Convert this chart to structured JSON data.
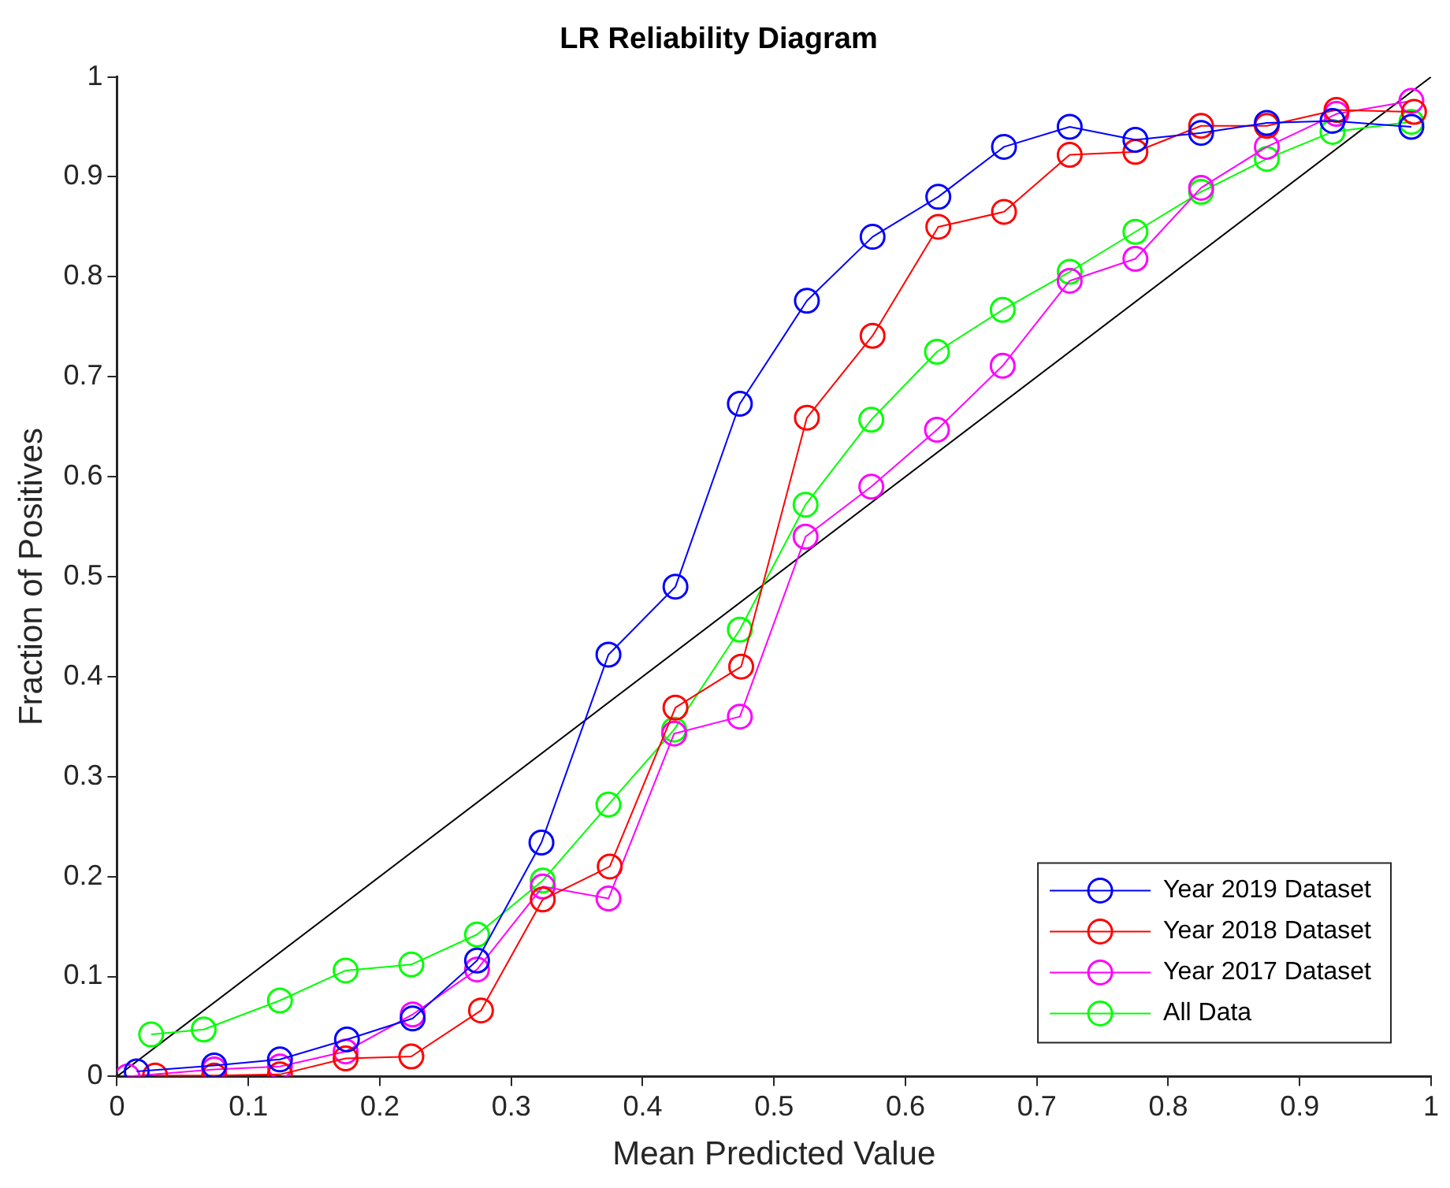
{
  "chart_data": {
    "type": "line",
    "title": "LR Reliability Diagram",
    "xlabel": "Mean Predicted Value",
    "ylabel": "Fraction of Positives",
    "xlim": [
      0,
      1
    ],
    "ylim": [
      0,
      1
    ],
    "xticks": [
      0,
      0.1,
      0.2,
      0.3,
      0.4,
      0.5,
      0.6,
      0.7,
      0.8,
      0.9,
      1
    ],
    "yticks": [
      0,
      0.1,
      0.2,
      0.3,
      0.4,
      0.5,
      0.6,
      0.7,
      0.8,
      0.9,
      1
    ],
    "grid": false,
    "legend": "bottom right",
    "marker": "circle",
    "line_style": "solid",
    "series": [
      {
        "name": "Year 2019 Dataset",
        "color": "#0000ff",
        "x": [
          0.015,
          0.074,
          0.124,
          0.175,
          0.225,
          0.274,
          0.323,
          0.374,
          0.425,
          0.474,
          0.525,
          0.575,
          0.625,
          0.675,
          0.725,
          0.775,
          0.825,
          0.875,
          0.925,
          0.985
        ],
        "values": [
          0.005,
          0.011,
          0.017,
          0.037,
          0.058,
          0.116,
          0.234,
          0.422,
          0.49,
          0.673,
          0.776,
          0.84,
          0.88,
          0.93,
          0.95,
          0.937,
          0.944,
          0.954,
          0.956,
          0.95
        ]
      },
      {
        "name": "Year 2018 Dataset",
        "color": "#ff0000",
        "x": [
          0.029,
          0.074,
          0.124,
          0.174,
          0.224,
          0.277,
          0.324,
          0.375,
          0.425,
          0.475,
          0.525,
          0.575,
          0.625,
          0.675,
          0.725,
          0.775,
          0.825,
          0.875,
          0.928,
          0.987
        ],
        "values": [
          0.001,
          0.001,
          0.002,
          0.018,
          0.02,
          0.066,
          0.177,
          0.21,
          0.369,
          0.41,
          0.659,
          0.741,
          0.85,
          0.865,
          0.922,
          0.925,
          0.951,
          0.951,
          0.967,
          0.965
        ]
      },
      {
        "name": "Year 2017 Dataset",
        "color": "#ff00ff",
        "x": [
          0.008,
          0.074,
          0.124,
          0.174,
          0.225,
          0.274,
          0.324,
          0.374,
          0.424,
          0.474,
          0.524,
          0.574,
          0.624,
          0.674,
          0.725,
          0.775,
          0.825,
          0.875,
          0.928,
          0.985
        ],
        "values": [
          0.0,
          0.007,
          0.01,
          0.025,
          0.062,
          0.107,
          0.19,
          0.178,
          0.343,
          0.36,
          0.54,
          0.59,
          0.647,
          0.711,
          0.796,
          0.818,
          0.889,
          0.93,
          0.963,
          0.976
        ]
      },
      {
        "name": "All Data",
        "color": "#00ff00",
        "x": [
          0.026,
          0.066,
          0.124,
          0.174,
          0.224,
          0.274,
          0.324,
          0.374,
          0.424,
          0.474,
          0.524,
          0.574,
          0.624,
          0.674,
          0.725,
          0.775,
          0.825,
          0.875,
          0.925,
          0.985
        ],
        "values": [
          0.042,
          0.047,
          0.076,
          0.106,
          0.112,
          0.142,
          0.196,
          0.272,
          0.347,
          0.447,
          0.572,
          0.657,
          0.725,
          0.767,
          0.805,
          0.845,
          0.885,
          0.918,
          0.945,
          0.955
        ]
      },
      {
        "color": "#000000",
        "marker": "none",
        "x": [
          0,
          1
        ],
        "values": [
          0,
          1
        ]
      }
    ]
  }
}
